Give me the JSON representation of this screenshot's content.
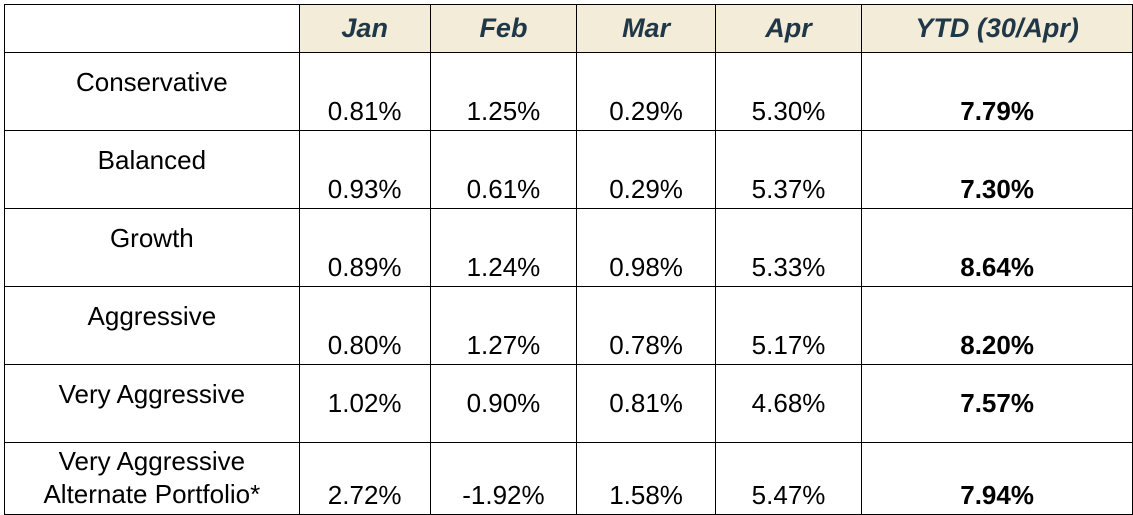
{
  "chart_data": {
    "type": "table",
    "columns": [
      "",
      "Jan",
      "Feb",
      "Mar",
      "Apr",
      "YTD (30/Apr)"
    ],
    "rows": [
      {
        "name": "Conservative",
        "values": [
          "0.81%",
          "1.25%",
          "0.29%",
          "5.30%",
          "7.79%"
        ]
      },
      {
        "name": "Balanced",
        "values": [
          "0.93%",
          "0.61%",
          "0.29%",
          "5.37%",
          "7.30%"
        ]
      },
      {
        "name": "Growth",
        "values": [
          "0.89%",
          "1.24%",
          "0.98%",
          "5.33%",
          "8.64%"
        ]
      },
      {
        "name": "Aggressive",
        "values": [
          "0.80%",
          "1.27%",
          "0.78%",
          "5.17%",
          "8.20%"
        ]
      },
      {
        "name": "Very Aggressive",
        "values": [
          "1.02%",
          "0.90%",
          "0.81%",
          "4.68%",
          "7.57%"
        ]
      },
      {
        "name": "Very Aggressive Alternate Portfolio*",
        "values": [
          "2.72%",
          "-1.92%",
          "1.58%",
          "5.47%",
          "7.94%"
        ]
      }
    ],
    "header_background": "#f2ecd9",
    "header_text_color": "#1f3747"
  }
}
